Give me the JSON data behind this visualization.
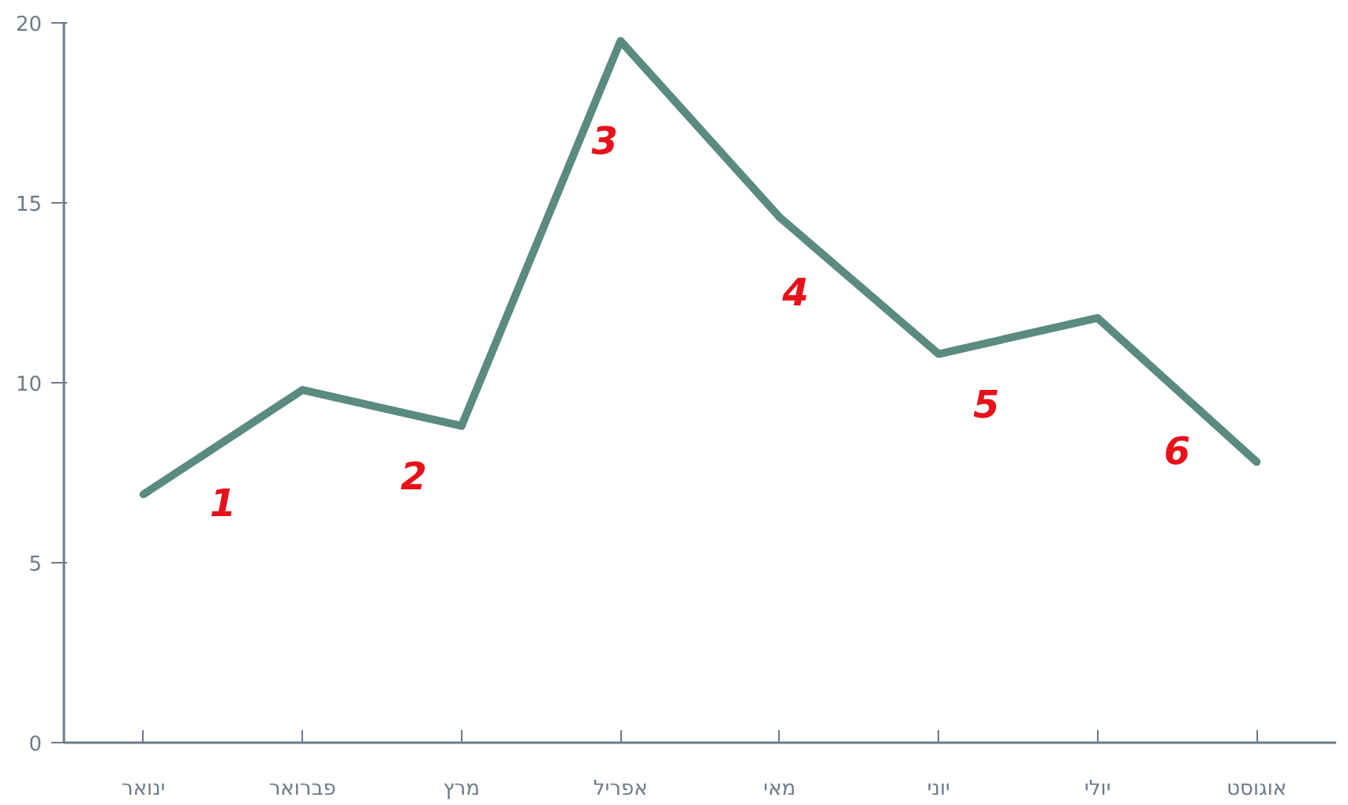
{
  "chart_data": {
    "type": "line",
    "categories": [
      "ינואר",
      "פברואר",
      "מרץ",
      "אפריל",
      "מאי",
      "יוני",
      "יולי",
      "אוגוסט"
    ],
    "series": [
      {
        "color": "#5b8a80",
        "values": [
          6.9,
          9.8,
          8.8,
          19.5,
          14.6,
          10.8,
          11.8,
          7.8
        ]
      }
    ],
    "ylim": [
      0,
      20
    ],
    "yticks": [
      0,
      5,
      10,
      15,
      20
    ],
    "grid": false,
    "marker": "none",
    "line_style": "solid",
    "annotations": [
      "1",
      "2",
      "3",
      "4",
      "5",
      "6"
    ]
  }
}
